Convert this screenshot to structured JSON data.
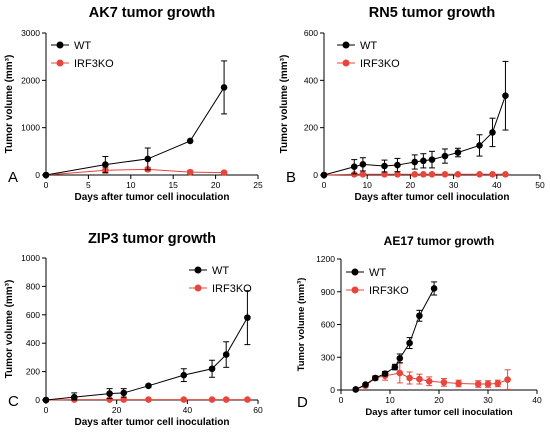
{
  "chart_data": [
    {
      "type": "line",
      "panel": "A",
      "title": "AK7 tumor growth",
      "xlabel": "Days after tumor cell inoculation",
      "ylabel": "Tumor volume (mm³)",
      "xlim": [
        0,
        25
      ],
      "ylim": [
        0,
        3000
      ],
      "xticks": [
        0,
        5,
        10,
        15,
        20,
        25
      ],
      "yticks": [
        0,
        1000,
        2000,
        3000
      ],
      "legend": "top-left",
      "series": [
        {
          "name": "WT",
          "color": "#000000",
          "x": [
            0,
            7,
            12,
            17,
            21
          ],
          "y": [
            0,
            220,
            340,
            720,
            1850
          ],
          "err": [
            0,
            170,
            230,
            0,
            560
          ]
        },
        {
          "name": "IRF3KO",
          "color": "#e8453c",
          "x": [
            0,
            7,
            12,
            17,
            21
          ],
          "y": [
            0,
            100,
            120,
            60,
            50
          ],
          "err": [
            0,
            60,
            40,
            40,
            30
          ]
        }
      ]
    },
    {
      "type": "line",
      "panel": "B",
      "title": "RN5 tumor growth",
      "xlabel": "Days after tumor cell inoculation",
      "ylabel": "Tumor volume (mm³)",
      "xlim": [
        0,
        50
      ],
      "ylim": [
        0,
        600
      ],
      "xticks": [
        0,
        10,
        20,
        30,
        40,
        50
      ],
      "yticks": [
        0,
        200,
        400,
        600
      ],
      "legend": "top-left",
      "series": [
        {
          "name": "WT",
          "color": "#000000",
          "x": [
            0,
            7,
            9,
            14,
            17,
            21,
            23,
            25,
            28,
            31,
            36,
            39,
            42
          ],
          "y": [
            0,
            35,
            45,
            38,
            42,
            55,
            60,
            65,
            80,
            95,
            125,
            180,
            335
          ],
          "err": [
            0,
            30,
            28,
            25,
            28,
            30,
            30,
            35,
            30,
            18,
            45,
            60,
            145
          ]
        },
        {
          "name": "IRF3KO",
          "color": "#e8453c",
          "x": [
            0,
            7,
            9,
            14,
            17,
            21,
            23,
            25,
            28,
            31,
            36,
            39,
            42
          ],
          "y": [
            0,
            3,
            3,
            3,
            3,
            3,
            3,
            3,
            3,
            3,
            3,
            3,
            3
          ],
          "err": [
            0,
            2,
            2,
            2,
            2,
            2,
            2,
            2,
            2,
            2,
            2,
            2,
            2
          ]
        }
      ]
    },
    {
      "type": "line",
      "panel": "C",
      "title": "ZIP3 tumor growth",
      "xlabel": "Days after tumor cell inoculation",
      "ylabel": "Tumor volume (mm³)",
      "xlim": [
        0,
        60
      ],
      "ylim": [
        0,
        1000
      ],
      "xticks": [
        0,
        20,
        40,
        60
      ],
      "yticks": [
        0,
        200,
        400,
        600,
        800,
        1000
      ],
      "legend": "top-right",
      "series": [
        {
          "name": "WT",
          "color": "#000000",
          "x": [
            0,
            8,
            18,
            22,
            29,
            39,
            47,
            51,
            57
          ],
          "y": [
            0,
            20,
            45,
            50,
            100,
            175,
            220,
            320,
            580
          ],
          "err": [
            0,
            30,
            35,
            30,
            10,
            45,
            60,
            90,
            190
          ]
        },
        {
          "name": "IRF3KO",
          "color": "#e8453c",
          "x": [
            0,
            8,
            18,
            22,
            29,
            39,
            47,
            51,
            57
          ],
          "y": [
            0,
            3,
            3,
            3,
            3,
            3,
            3,
            3,
            3
          ],
          "err": [
            0,
            2,
            2,
            2,
            2,
            2,
            2,
            2,
            2
          ]
        }
      ]
    },
    {
      "type": "line",
      "panel": "D",
      "title": "AE17 tumor growth",
      "xlabel": "Days after tumor cell inoculation",
      "ylabel": "Tumor volume (mm³)",
      "xlim": [
        0,
        40
      ],
      "ylim": [
        0,
        1200
      ],
      "xticks": [
        0,
        10,
        20,
        30,
        40
      ],
      "yticks": [
        0,
        300,
        600,
        900,
        1200
      ],
      "legend": "top-left",
      "series": [
        {
          "name": "WT",
          "color": "#000000",
          "x": [
            3,
            5,
            7,
            9,
            11,
            12,
            14,
            16,
            19
          ],
          "y": [
            5,
            50,
            110,
            150,
            210,
            290,
            430,
            680,
            930
          ],
          "err": [
            3,
            10,
            15,
            20,
            25,
            40,
            50,
            50,
            60
          ]
        },
        {
          "name": "IRF3KO",
          "color": "#e8453c",
          "x": [
            3,
            5,
            7,
            9,
            12,
            14,
            16,
            18,
            21,
            24,
            28,
            30,
            32,
            34
          ],
          "y": [
            5,
            40,
            110,
            130,
            155,
            110,
            100,
            80,
            70,
            60,
            55,
            55,
            60,
            95
          ],
          "err": [
            3,
            15,
            20,
            40,
            90,
            55,
            45,
            40,
            35,
            30,
            30,
            30,
            30,
            90
          ]
        }
      ]
    }
  ]
}
